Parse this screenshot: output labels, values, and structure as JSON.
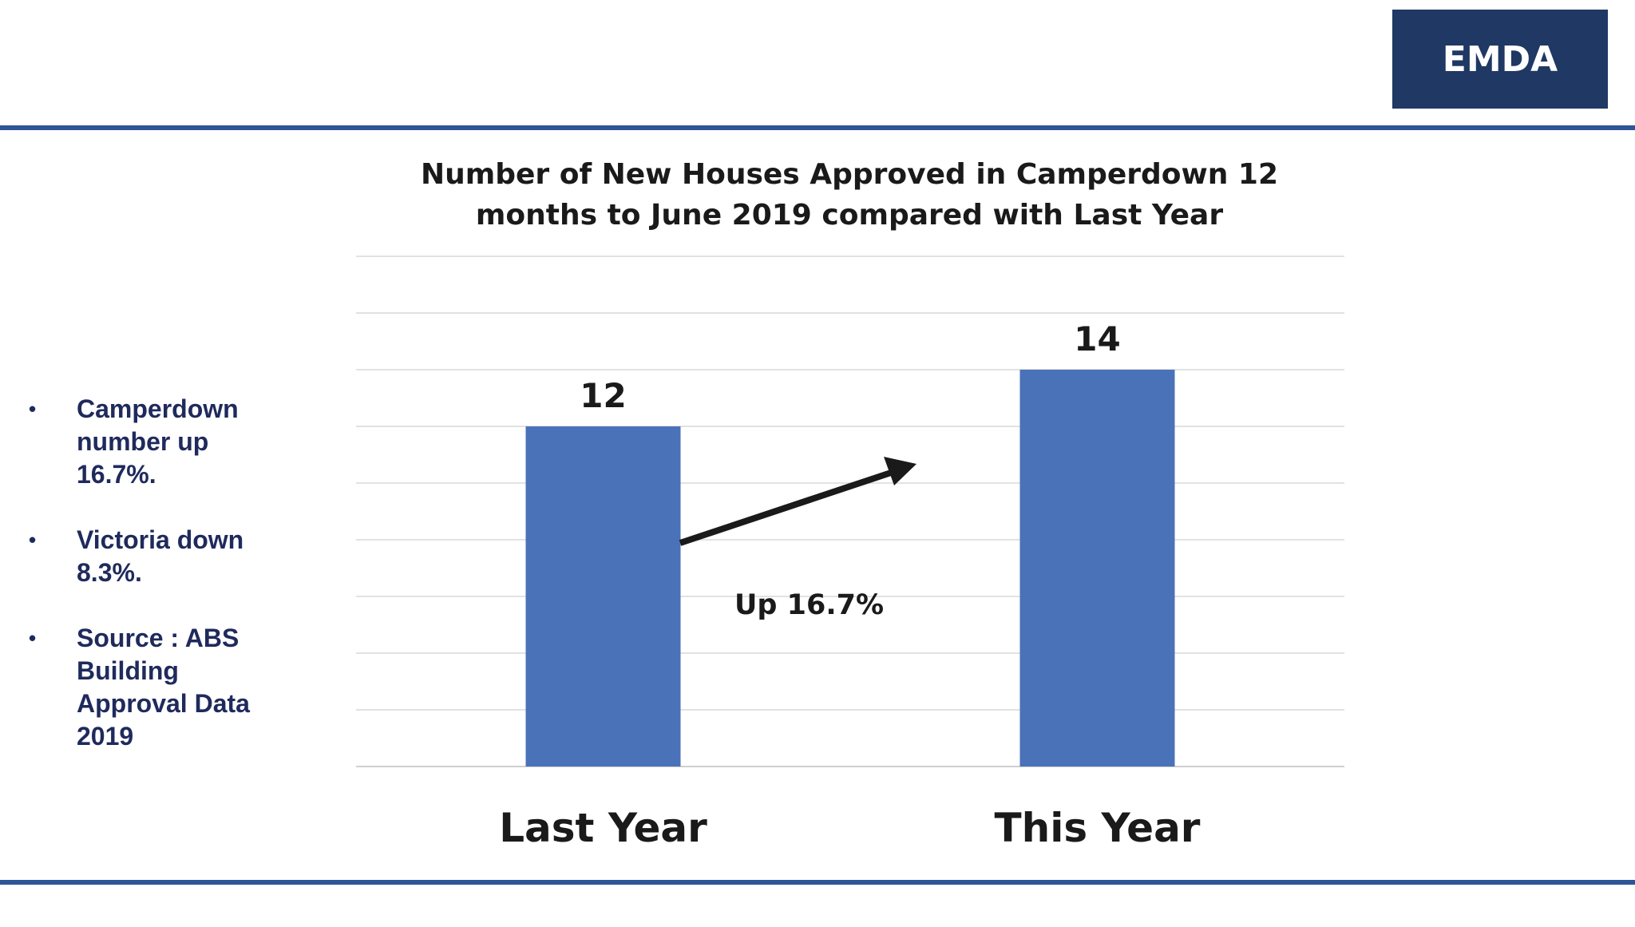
{
  "header": {
    "logo_text": "EMDA",
    "logo_bg": "#1f3864",
    "rule_color": "#2f5597"
  },
  "bullets": [
    {
      "text": "Camperdown number up 16.7%."
    },
    {
      "text": "Victoria down 8.3%."
    },
    {
      "text": "Source : ABS Building Approval Data 2019"
    }
  ],
  "chart_data": {
    "type": "bar",
    "title": "Number of New Houses Approved in Camperdown 12 months to June 2019 compared with Last Year",
    "title_lines": [
      "Number of New Houses Approved in Camperdown 12",
      "months to June 2019 compared with Last Year"
    ],
    "categories": [
      "Last Year",
      "This Year"
    ],
    "values": [
      12,
      14
    ],
    "data_labels": [
      "12",
      "14"
    ],
    "bar_color": "#4a72b8",
    "ylim": [
      0,
      18
    ],
    "grid": true,
    "gridline_step": 2,
    "annotation": {
      "text": "Up 16.7%",
      "arrow": "up-right"
    }
  }
}
